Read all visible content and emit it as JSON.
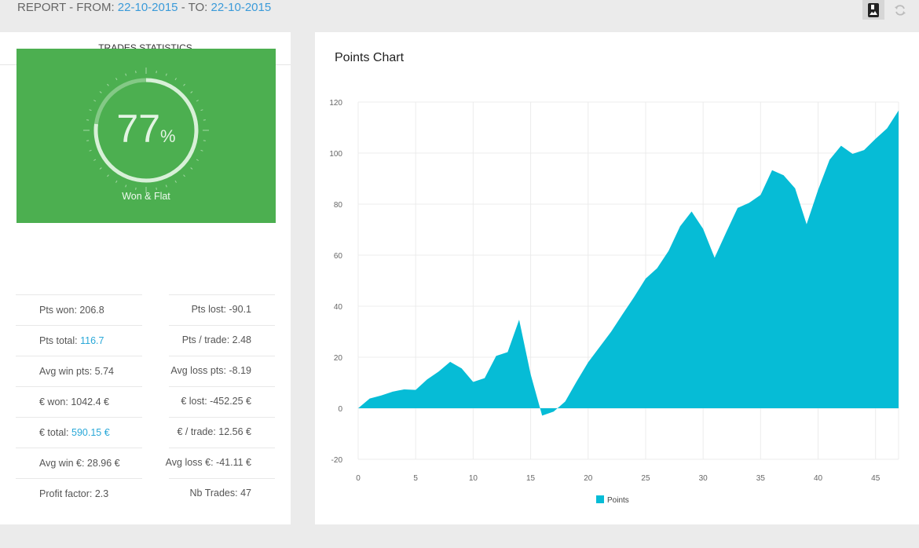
{
  "header": {
    "prefix": "REPORT - FROM: ",
    "from": "22-10-2015",
    "mid": " - TO: ",
    "to": "22-10-2015",
    "icons": [
      "image-icon",
      "refresh-icon"
    ]
  },
  "stats": {
    "title": "TRADES STATISTICS",
    "gauge": {
      "value": "77",
      "unit": "%",
      "label": "Won & Flat",
      "fraction": 0.77
    },
    "left": [
      {
        "label": "Pts won: ",
        "value": "206.8",
        "highlight": false
      },
      {
        "label": "Pts total: ",
        "value": "116.7",
        "highlight": true
      },
      {
        "label": "Avg win pts: ",
        "value": "5.74",
        "highlight": false
      },
      {
        "label": "€ won: ",
        "value": "1042.4 €",
        "highlight": false
      },
      {
        "label": "€ total: ",
        "value": "590.15 €",
        "highlight": true
      },
      {
        "label": "Avg win €: ",
        "value": "28.96 €",
        "highlight": false
      },
      {
        "label": "Profit factor: ",
        "value": "2.3",
        "highlight": false
      }
    ],
    "right": [
      {
        "label": "Pts lost: ",
        "value": "-90.1"
      },
      {
        "label": "Pts / trade: ",
        "value": "2.48"
      },
      {
        "label": "Avg loss pts: ",
        "value": "-8.19"
      },
      {
        "label": "€ lost: ",
        "value": "-452.25 €"
      },
      {
        "label": "€ / trade: ",
        "value": "12.56 €"
      },
      {
        "label": "Avg loss €: ",
        "value": "-41.11 €"
      },
      {
        "label": "Nb Trades: ",
        "value": "47"
      }
    ]
  },
  "chart_data": {
    "type": "area",
    "title": "Points Chart",
    "xlabel": "",
    "ylabel": "",
    "xlim": [
      0,
      47
    ],
    "ylim": [
      -20,
      120
    ],
    "xticks": [
      0,
      5,
      10,
      15,
      20,
      25,
      30,
      35,
      40,
      45
    ],
    "yticks": [
      -20,
      0,
      20,
      40,
      60,
      80,
      100,
      120
    ],
    "grid": true,
    "legend": "bottom",
    "color": "#06bcd6",
    "series": [
      {
        "name": "Points",
        "x": [
          0,
          1,
          2,
          3,
          4,
          5,
          6,
          7,
          8,
          9,
          10,
          11,
          12,
          13,
          14,
          15,
          16,
          17,
          18,
          19,
          20,
          21,
          22,
          23,
          24,
          25,
          26,
          27,
          28,
          29,
          30,
          31,
          32,
          33,
          34,
          35,
          36,
          37,
          38,
          39,
          40,
          41,
          42,
          43,
          44,
          45,
          46,
          47
        ],
        "values": [
          0,
          3.8,
          5,
          6.5,
          7.4,
          7.2,
          11.3,
          14.4,
          18.2,
          15.6,
          10.3,
          11.8,
          20.5,
          22,
          34.7,
          13.3,
          -2.9,
          -1.3,
          2.6,
          10.5,
          18,
          24,
          30,
          36.9,
          43.6,
          50.8,
          54.9,
          61.7,
          71.3,
          77.1,
          70.3,
          59,
          68.9,
          78.5,
          80.5,
          83.6,
          93.3,
          91.3,
          86.2,
          72.1,
          85.6,
          97.4,
          102.9,
          99.7,
          101.2,
          105.6,
          109.7,
          116.7
        ]
      }
    ]
  }
}
